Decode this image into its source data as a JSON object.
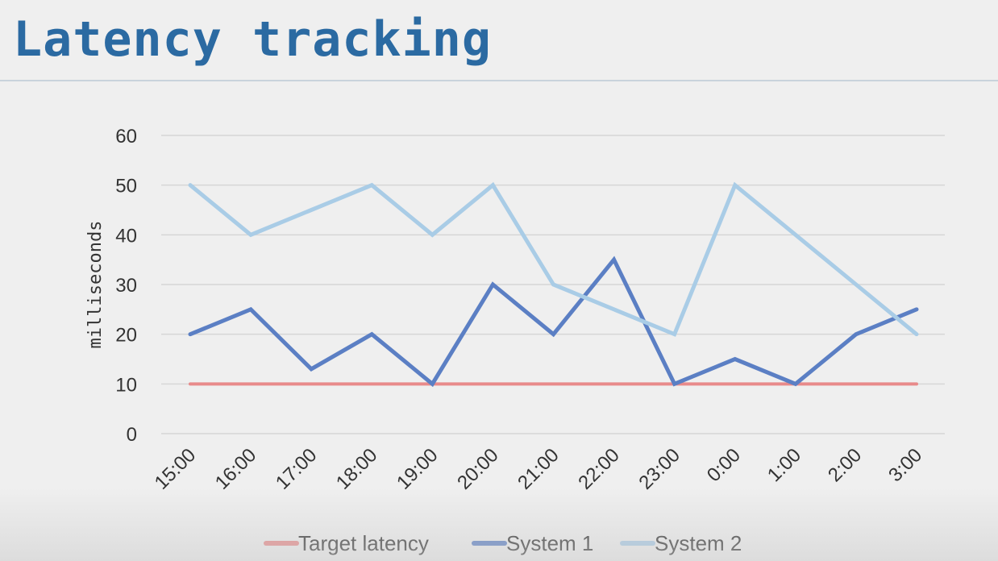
{
  "page": {
    "title": "Latency tracking"
  },
  "chart_data": {
    "type": "line",
    "title": "",
    "xlabel": "",
    "ylabel": "milliseconds",
    "categories": [
      "15:00",
      "16:00",
      "17:00",
      "18:00",
      "19:00",
      "20:00",
      "21:00",
      "22:00",
      "23:00",
      "0:00",
      "1:00",
      "2:00",
      "3:00"
    ],
    "yticks": [
      "0",
      "10",
      "20",
      "30",
      "40",
      "50",
      "60"
    ],
    "ylim": [
      0,
      60
    ],
    "grid": true,
    "legend_position": "bottom",
    "series": [
      {
        "name": "Target latency",
        "color": "#e88a8a",
        "values": [
          10,
          10,
          10,
          10,
          10,
          10,
          10,
          10,
          10,
          10,
          10,
          10,
          10
        ]
      },
      {
        "name": "System 1",
        "color": "#5b7fc4",
        "values": [
          20,
          25,
          13,
          20,
          10,
          30,
          20,
          35,
          10,
          15,
          10,
          20,
          25
        ]
      },
      {
        "name": "System 2",
        "color": "#a9cce6",
        "values": [
          50,
          40,
          45,
          50,
          40,
          50,
          30,
          25,
          20,
          50,
          40,
          30,
          20
        ]
      }
    ]
  }
}
